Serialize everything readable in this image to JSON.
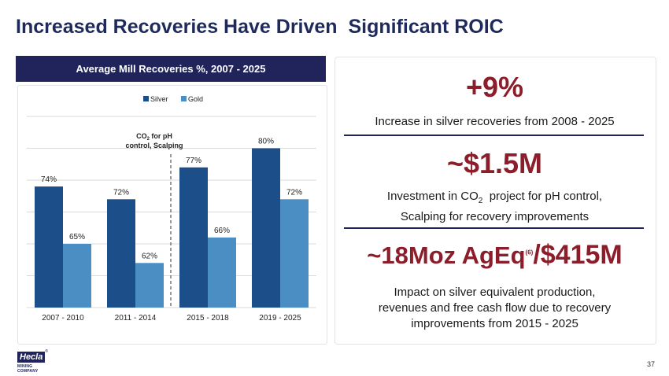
{
  "page": {
    "title": "Increased Recoveries Have Driven  Significant ROIC",
    "page_number": "37",
    "logo_text": "Hecla",
    "logo_sub": "MINING COMPANY",
    "logo_mark": "®"
  },
  "chart_header": "Average Mill Recoveries %, 2007 - 2025",
  "chart_data": {
    "type": "bar",
    "categories": [
      "2007 - 2010",
      "2011 - 2014",
      "2015 - 2018",
      "2019 - 2025"
    ],
    "series": [
      {
        "name": "Silver",
        "values": [
          74,
          72,
          77,
          80
        ],
        "labels": [
          "74%",
          "72%",
          "77%",
          "80%"
        ],
        "color": "#1c4e8a"
      },
      {
        "name": "Gold",
        "values": [
          65,
          62,
          66,
          72
        ],
        "labels": [
          "65%",
          "62%",
          "66%",
          "72%"
        ],
        "color": "#4a8ec4"
      }
    ],
    "ylim": [
      55,
      85
    ],
    "grid": true,
    "legend": "top-center",
    "annotation": {
      "line1_pre": "CO",
      "line1_sub": "2",
      "line1_post": " for pH",
      "line2": "control, Scalping"
    },
    "divider_between": [
      "2011 - 2014",
      "2015 - 2018"
    ]
  },
  "stats": {
    "s1": {
      "value": "+9%",
      "desc": "Increase in silver recoveries from 2008 - 2025"
    },
    "s2": {
      "value": "~$1.5M",
      "desc_pre": "Investment in CO",
      "desc_sub": "2",
      "desc_post": "  project for pH control,",
      "desc_line2": "Scalping for recovery improvements"
    },
    "s3": {
      "value_pre": "~18Moz AgEq",
      "value_sup": "(6)",
      "value_post": "/$415M",
      "desc_line1": "Impact on silver equivalent production,",
      "desc_line2": "revenues and free cash flow due to recovery",
      "desc_line3": "improvements from 2015 - 2025"
    }
  },
  "colors": {
    "navy": "#20245a",
    "accent": "#8b1e2a",
    "silver": "#1c4e8a",
    "gold": "#4a8ec4"
  }
}
